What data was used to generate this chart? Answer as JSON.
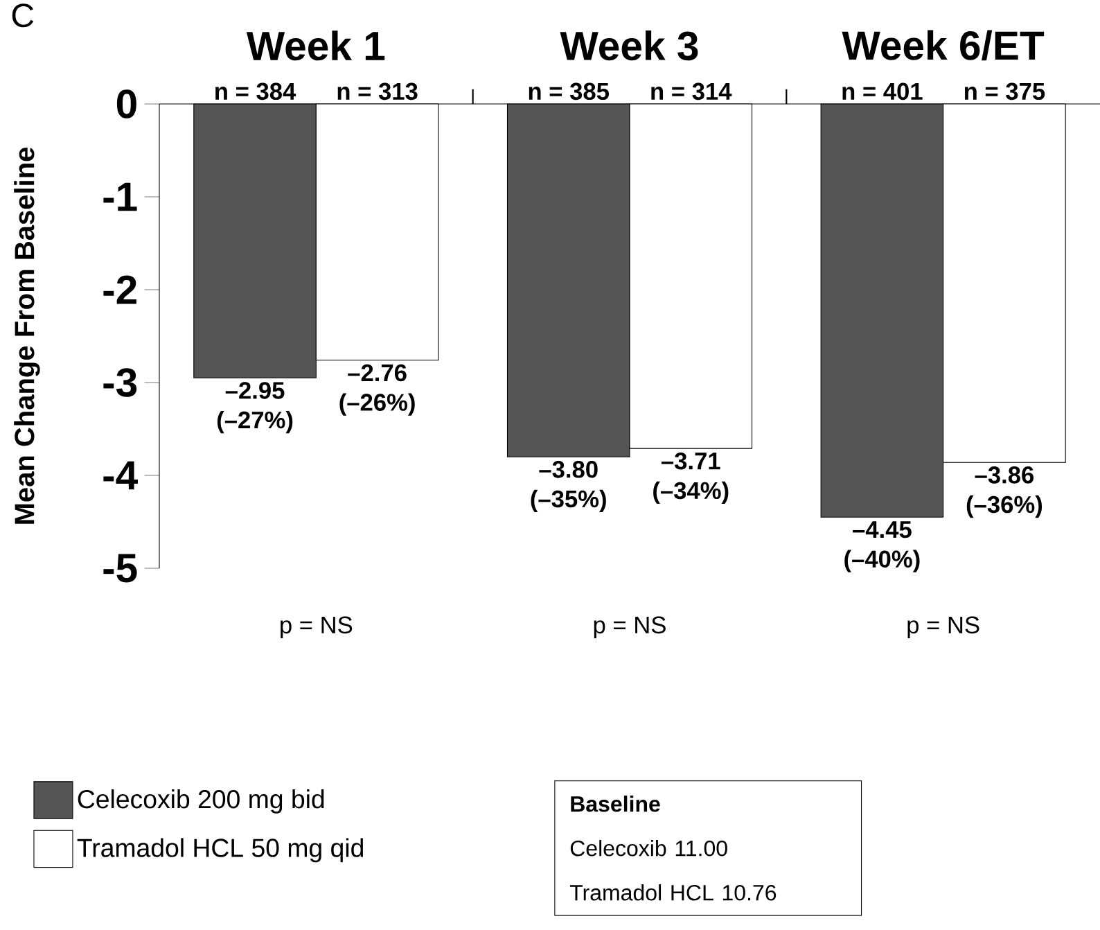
{
  "chart_data": {
    "type": "bar",
    "ylabel": "Mean Change From Baseline",
    "categories": [
      "Week 1",
      "Week 3",
      "Week 6/ET"
    ],
    "series": [
      {
        "name": "Celecoxib 200 mg bid",
        "color": "#555555",
        "values": [
          -2.95,
          -3.8,
          -4.45
        ],
        "value_labels": [
          "–2.95 (–27%)",
          "–3.80 (–35%)",
          "–4.45 (–40%)"
        ]
      },
      {
        "name": "Tramadol HCL 50 mg qid",
        "color": "#ffffff",
        "values": [
          -2.76,
          -3.71,
          -3.86
        ],
        "value_labels": [
          "–2.76 (–26%)",
          "–3.71 (–34%)",
          "–3.86 (–36%)"
        ]
      }
    ],
    "ylim": [
      -5,
      0
    ],
    "yticks": [
      -5,
      -4,
      -3,
      -2,
      -1,
      0
    ],
    "grid": false,
    "legend": "bottom left",
    "annotations": [
      "C",
      {
        "text": "n = 384",
        "x": "Week 1",
        "y": 0
      },
      {
        "text": "n = 313",
        "x": "Week 1",
        "y": 0
      },
      {
        "text": "n = 385",
        "x": "Week 3",
        "y": 0
      },
      {
        "text": "n = 314",
        "x": "Week 3",
        "y": 0
      },
      {
        "text": "n = 401",
        "x": "Week 6/ET",
        "y": 0
      },
      {
        "text": "n = 375",
        "x": "Week 6/ET",
        "y": 0
      },
      "p = NS",
      "p = NS",
      "p = NS",
      "Baseline",
      "Celecoxib 11.00",
      "Tramadol HCL 10.76"
    ]
  }
}
